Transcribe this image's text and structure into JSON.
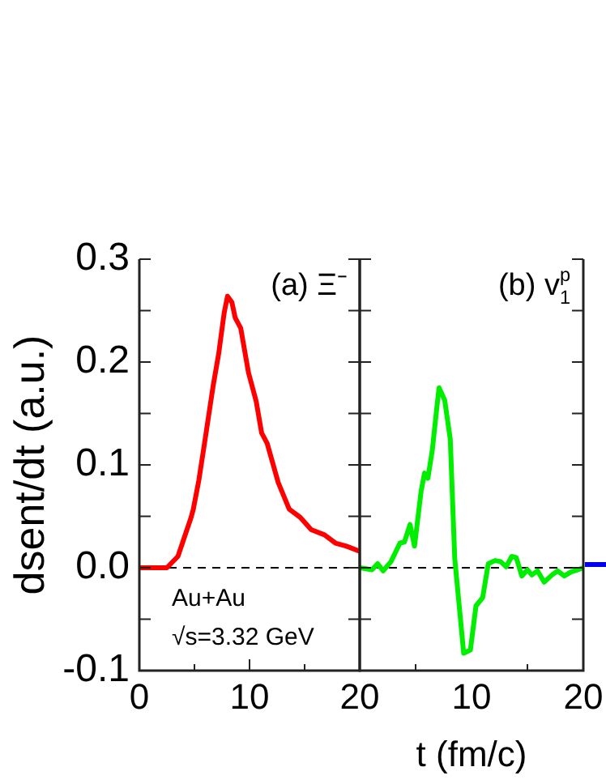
{
  "chart_data": [
    {
      "type": "line",
      "ylabel": "dsent/dt (a.u.)",
      "annotations": [
        "(a) Ξ⁻",
        "Au+Au",
        "√s=3.32 GeV"
      ],
      "xlim": [
        0,
        20
      ],
      "xticks": [
        0,
        {
          "value": 5,
          "label": null
        },
        10,
        {
          "value": 15,
          "label": null
        },
        20
      ],
      "ylim": [
        -0.1,
        0.3
      ],
      "yticks": [
        -0.1,
        {
          "value": -0.05,
          "label": null
        },
        {
          "value": 0,
          "label": "0.0"
        },
        {
          "value": 0.05,
          "label": null
        },
        0.1,
        {
          "value": 0.15,
          "label": null
        },
        0.2,
        {
          "value": 0.25,
          "label": null
        },
        0.3
      ],
      "ref_lines": [
        {
          "axis": "y",
          "value": 0,
          "color": "#000000",
          "line_style": "dashed"
        }
      ],
      "series": [
        {
          "color": "#ff0000",
          "x": [
            0,
            2.5,
            3.5,
            4.7,
            4.9,
            5.4,
            5.9,
            6.7,
            7.2,
            7.7,
            8.0,
            8.4,
            8.7,
            9.2,
            9.9,
            10.6,
            11.1,
            11.6,
            12.6,
            13.6,
            14.6,
            15.6,
            16.8,
            17.8,
            18.8,
            20
          ],
          "values": [
            0,
            0,
            0.011,
            0.049,
            0.057,
            0.085,
            0.12,
            0.177,
            0.208,
            0.248,
            0.264,
            0.258,
            0.243,
            0.233,
            0.19,
            0.162,
            0.131,
            0.121,
            0.083,
            0.057,
            0.049,
            0.037,
            0.032,
            0.024,
            0.021,
            0.016
          ]
        }
      ],
      "legend": false,
      "grid": false
    },
    {
      "type": "line",
      "xlabel": "t (fm/c)",
      "annotations": [
        "(b) v$_{1}$$^{p}$"
      ],
      "tick_labels": "x",
      "xlim": [
        0,
        20
      ],
      "xticks": [
        {
          "value": 0,
          "label": null
        },
        {
          "value": 5,
          "label": null
        },
        10,
        {
          "value": 15,
          "label": null
        },
        20
      ],
      "ylim": [
        -0.1,
        0.3
      ],
      "yticks": [
        {
          "value": -0.1,
          "label": null
        },
        {
          "value": -0.05,
          "label": null
        },
        {
          "value": 0,
          "label": null
        },
        {
          "value": 0.05,
          "label": null
        },
        {
          "value": 0.1,
          "label": null
        },
        {
          "value": 0.15,
          "label": null
        },
        {
          "value": 0.2,
          "label": null
        },
        {
          "value": 0.25,
          "label": null
        },
        {
          "value": 0.3,
          "label": null
        }
      ],
      "ref_lines": [
        {
          "axis": "y",
          "value": 0,
          "color": "#000000",
          "line_style": "dashed"
        }
      ],
      "series": [
        {
          "color": "#00ee00",
          "x": [
            0,
            1.1,
            1.6,
            2.1,
            2.8,
            3.6,
            4.0,
            4.5,
            4.9,
            5.5,
            5.8,
            6.1,
            6.5,
            6.9,
            7.1,
            7.6,
            8.1,
            8.5,
            8.9,
            9.3,
            9.9,
            10.4,
            11.0,
            11.5,
            12.1,
            12.6,
            13.1,
            13.6,
            14.0,
            14.5,
            15.0,
            15.4,
            15.9,
            16.5,
            17.2,
            17.7,
            18.3,
            18.9,
            19.5,
            20
          ],
          "values": [
            0,
            -0.002,
            0.004,
            -0.003,
            0.006,
            0.024,
            0.025,
            0.042,
            0.021,
            0.075,
            0.092,
            0.087,
            0.115,
            0.156,
            0.175,
            0.163,
            0.125,
            0.009,
            -0.037,
            -0.083,
            -0.08,
            -0.037,
            -0.029,
            0.004,
            0.007,
            0.006,
            0.001,
            0.011,
            0.01,
            -0.008,
            -0.002,
            -0.007,
            -0.003,
            -0.014,
            -0.007,
            -0.003,
            -0.008,
            -0.004,
            -0.002,
            0
          ]
        }
      ],
      "legend": false,
      "grid": false
    }
  ]
}
